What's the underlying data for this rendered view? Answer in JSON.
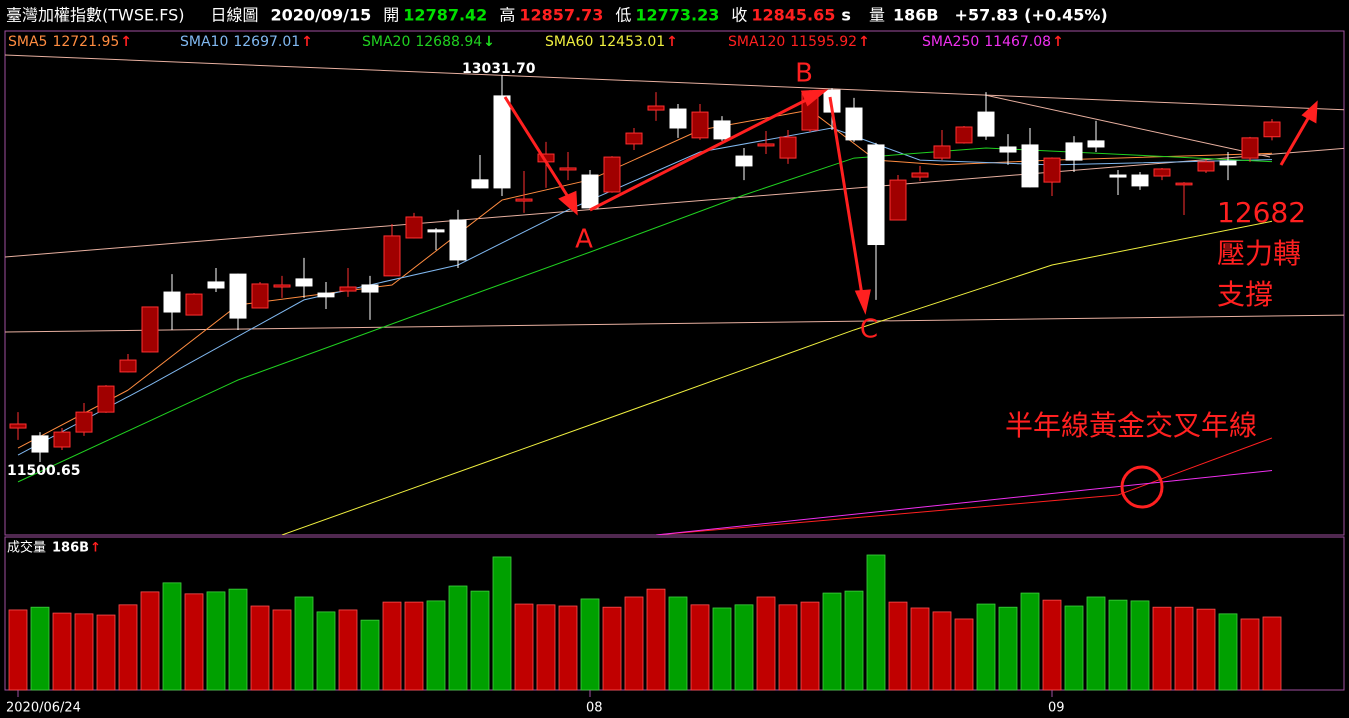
{
  "chart_data": {
    "type": "candlestick",
    "title": "臺灣加權指數(TWSE.FS)",
    "period": "日線圖",
    "date": "2020/09/15",
    "quote": [
      {
        "label": "開",
        "value": 12787.42,
        "color": "#00e000"
      },
      {
        "label": "高",
        "value": 12857.73,
        "color": "#ff2020"
      },
      {
        "label": "低",
        "value": 12773.23,
        "color": "#00e000"
      },
      {
        "label": "收",
        "value": 12845.65,
        "color": "#ff2020"
      }
    ],
    "quote_suffix": "s",
    "volume_text": "量",
    "volume_now": "186B",
    "change": "+57.83 (+0.45%)",
    "categories": [
      "2020/06/24",
      null,
      null,
      null,
      null,
      null,
      null,
      null,
      null,
      null,
      null,
      null,
      null,
      null,
      null,
      null,
      null,
      null,
      null,
      null,
      null,
      null,
      null,
      null,
      null,
      null,
      "08",
      null,
      null,
      null,
      null,
      null,
      null,
      null,
      null,
      null,
      null,
      null,
      null,
      null,
      null,
      null,
      null,
      null,
      null,
      null,
      null,
      "09",
      null,
      null,
      null,
      null,
      null,
      null,
      null,
      null,
      null,
      null
    ],
    "open": [
      11635,
      11604,
      11560,
      11619,
      11698,
      11857,
      11936,
      12173,
      12082,
      12213,
      12244,
      12110,
      12193,
      12225,
      12169,
      12177,
      12201,
      12237,
      12387,
      12419,
      12458,
      12617,
      12949,
      12533,
      12688,
      12656,
      12636,
      12569,
      12759,
      12893,
      12897,
      12783,
      12850,
      12711,
      12751,
      12703,
      12814,
      12972,
      12901,
      12755,
      12458,
      12628,
      12703,
      12763,
      12885,
      12747,
      12755,
      12608,
      12763,
      12771,
      12636,
      12636,
      12632,
      12597,
      12652,
      12691,
      12703,
      12787.42
    ],
    "high": [
      11698,
      11619,
      11635,
      11734,
      11805,
      11928,
      12116,
      12244,
      12169,
      12268,
      12246,
      12213,
      12237,
      12308,
      12213,
      12268,
      12237,
      12442,
      12486,
      12426,
      12498,
      12715,
      13031.7,
      12652,
      12767,
      12727,
      12656,
      12711,
      12822,
      12964,
      12917,
      12917,
      12869,
      12743,
      12810,
      12814,
      12972,
      12980,
      12941,
      12763,
      12636,
      12672,
      12814,
      12830,
      12964,
      12798,
      12822,
      12706,
      12790,
      12850,
      12656,
      12648,
      12664,
      12608,
      12695,
      12727,
      12787,
      12857.73
    ],
    "low": [
      11588,
      11500.65,
      11548,
      11604,
      11695,
      11855,
      11934,
      12023,
      12080,
      12173,
      12023,
      12108,
      12150,
      12150,
      12106,
      12154,
      12063,
      12235,
      12385,
      12339,
      12268,
      12583,
      12553,
      12486,
      12585,
      12616,
      12498,
      12566,
      12735,
      12850,
      12783,
      12775,
      12771,
      12616,
      12719,
      12680,
      12806,
      12814,
      12767,
      12142,
      12456,
      12612,
      12695,
      12760,
      12775,
      12676,
      12587,
      12553,
      12648,
      12727,
      12557,
      12577,
      12616,
      12478,
      12644,
      12616,
      12688,
      12773.23
    ],
    "close": [
      11651,
      11540,
      11619,
      11698,
      11801,
      11904,
      12114,
      12094,
      12165,
      12189,
      12070,
      12205,
      12201,
      12197,
      12154,
      12193,
      12173,
      12395,
      12470,
      12411,
      12300,
      12585,
      12585,
      12541,
      12719,
      12664,
      12506,
      12707,
      12802,
      12909,
      12822,
      12885,
      12779,
      12672,
      12759,
      12786,
      12964,
      12885,
      12775,
      12361,
      12616,
      12644,
      12751,
      12826,
      12790,
      12727,
      12589,
      12703,
      12695,
      12747,
      12628,
      12593,
      12660,
      12604,
      12688,
      12676,
      12783,
      12845.65
    ],
    "up_color": "#c00000",
    "down_color": "#ffffff",
    "ma": [
      {
        "name": "SMA5",
        "color": "#ff8c40",
        "trend": "↑",
        "x": [
          0,
          5,
          10,
          17,
          22,
          26,
          31,
          36,
          39,
          42,
          47,
          57
        ],
        "values": [
          11556,
          11785,
          12122,
          12201,
          12537,
          12617,
          12814,
          12893,
          12695,
          12676,
          12695,
          12721.95
        ]
      },
      {
        "name": "SMA10",
        "color": "#80b8f0",
        "trend": "↑",
        "x": [
          0,
          6,
          13,
          20,
          25,
          31,
          37,
          41,
          47,
          57
        ],
        "values": [
          11528,
          11805,
          12142,
          12280,
          12498,
          12727,
          12822,
          12695,
          12676,
          12697.01
        ]
      },
      {
        "name": "SMA20",
        "color": "#20d020",
        "trend": "↓",
        "x": [
          0,
          10,
          20,
          26,
          33,
          38,
          44,
          57
        ],
        "values": [
          11422,
          11825,
          12142,
          12331,
          12557,
          12703,
          12743,
          12688.94
        ]
      },
      {
        "name": "SMA60",
        "color": "#f0f040",
        "trend": "↑",
        "x": [
          12,
          26,
          38,
          47,
          57
        ],
        "values": [
          11212,
          11647,
          12023,
          12280,
          12453.01
        ]
      },
      {
        "name": "SMA120",
        "color": "#ff2020",
        "trend": "↑",
        "x": [
          29,
          50,
          57
        ],
        "values": [
          11212,
          11370,
          11595.92
        ]
      },
      {
        "name": "SMA250",
        "color": "#f030f0",
        "trend": "↑",
        "x": [
          29,
          57
        ],
        "values": [
          11212,
          11467.08
        ]
      }
    ],
    "volume": {
      "title": "成交量",
      "current": "186B",
      "trend": "↑",
      "values": [
        204,
        211,
        196,
        194,
        191,
        217,
        250,
        273,
        245,
        250,
        257,
        214,
        204,
        237,
        199,
        204,
        178,
        224,
        224,
        227,
        265,
        252,
        339,
        219,
        217,
        214,
        232,
        211,
        237,
        257,
        237,
        217,
        209,
        217,
        237,
        217,
        224,
        247,
        252,
        344,
        224,
        209,
        199,
        181,
        219,
        211,
        247,
        229,
        214,
        237,
        229,
        227,
        211,
        211,
        206,
        194,
        181,
        186
      ],
      "up_color": "#c00000",
      "down_color": "#00a000"
    },
    "annotations": [
      {
        "text": "13031.70"
      },
      {
        "text": "11500.65"
      },
      {
        "text": "A"
      },
      {
        "text": "B"
      },
      {
        "text": "C"
      },
      {
        "text": "12682"
      },
      {
        "text": "壓力轉"
      },
      {
        "text": "支撐"
      },
      {
        "text": "半年線黃金交叉年線"
      }
    ]
  }
}
